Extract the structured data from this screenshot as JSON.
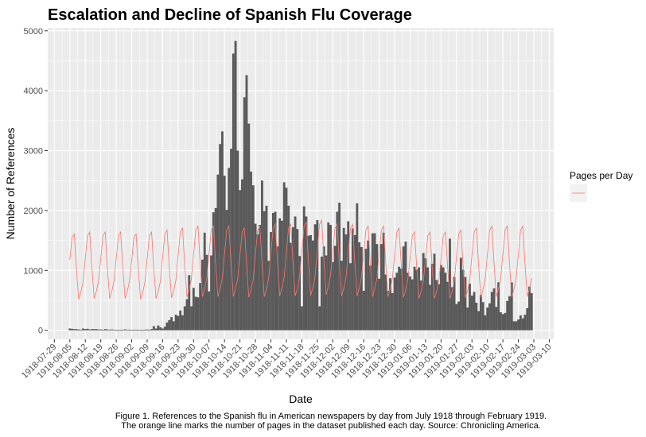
{
  "chart_data": {
    "type": "bar",
    "title": "Escalation and Decline of Spanish Flu Coverage",
    "xlabel": "Date",
    "ylabel": "Number of References",
    "ylim": [
      -150,
      5050
    ],
    "yticks": [
      0,
      1000,
      2000,
      3000,
      4000,
      5000
    ],
    "xlim": [
      "1918-07-26",
      "1919-03-12"
    ],
    "xticks": [
      "1918-07-29",
      "1918-08-05",
      "1918-08-12",
      "1918-08-19",
      "1918-08-26",
      "1918-09-02",
      "1918-09-09",
      "1918-09-16",
      "1918-09-23",
      "1918-09-30",
      "1918-10-07",
      "1918-10-14",
      "1918-10-21",
      "1918-10-28",
      "1918-11-04",
      "1918-11-11",
      "1918-11-18",
      "1918-11-25",
      "1918-12-02",
      "1918-12-09",
      "1918-12-16",
      "1918-12-23",
      "1918-12-30",
      "1919-01-06",
      "1919-01-13",
      "1919-01-20",
      "1919-01-27",
      "1919-02-03",
      "1919-02-10",
      "1919-02-17",
      "1919-02-24",
      "1919-03-03",
      "1919-03-10"
    ],
    "grid": true,
    "legend": {
      "title": "Pages per Day",
      "position": "right"
    },
    "series": [
      {
        "kind": "bar",
        "color": "#595959",
        "start_date": "1918-08-05",
        "values": [
          30,
          25,
          20,
          20,
          15,
          10,
          30,
          20,
          25,
          15,
          20,
          20,
          20,
          15,
          15,
          10,
          20,
          15,
          10,
          15,
          10,
          5,
          5,
          5,
          10,
          15,
          10,
          10,
          5,
          5,
          10,
          5,
          5,
          5,
          10,
          15,
          5,
          20,
          70,
          30,
          80,
          50,
          30,
          60,
          130,
          170,
          220,
          150,
          260,
          240,
          330,
          250,
          400,
          520,
          920,
          400,
          710,
          560,
          550,
          790,
          1180,
          1630,
          1260,
          650,
          1250,
          1970,
          2040,
          2600,
          3110,
          3320,
          2580,
          2010,
          2710,
          3030,
          4620,
          4830,
          3000,
          2340,
          2520,
          3890,
          4260,
          3450,
          2650,
          2420,
          1780,
          1600,
          1760,
          2500,
          1990,
          2080,
          1160,
          1640,
          1960,
          1980,
          1400,
          1870,
          1830,
          2470,
          2380,
          2080,
          1460,
          1720,
          1900,
          1690,
          1240,
          400,
          2070,
          1900,
          1580,
          1590,
          1500,
          1770,
          1840,
          400,
          1230,
          1400,
          1250,
          1800,
          1760,
          1140,
          1410,
          1980,
          2130,
          1160,
          1710,
          1600,
          1820,
          1120,
          1700,
          1590,
          2120,
          1470,
          1390,
          660,
          1360,
          1500,
          1080,
          1620,
          1620,
          1440,
          860,
          1440,
          1630,
          930,
          660,
          870,
          620,
          880,
          960,
          1060,
          1030,
          1400,
          1480,
          960,
          900,
          850,
          1060,
          1010,
          1050,
          830,
          1290,
          1200,
          1050,
          760,
          1110,
          1280,
          840,
          770,
          1090,
          1050,
          960,
          810,
          1530,
          720,
          890,
          440,
          480,
          1210,
          1010,
          890,
          380,
          780,
          580,
          640,
          460,
          320,
          590,
          470,
          250,
          380,
          450,
          640,
          700,
          390,
          800,
          300,
          270,
          290,
          490,
          570,
          800,
          150,
          150,
          180,
          250,
          200,
          260,
          370,
          730,
          620
        ]
      },
      {
        "kind": "line",
        "name": "Pages per Day",
        "color": "#F8766D",
        "start_date": "1918-08-05",
        "week_cycle": [
          1200,
          1580,
          1640,
          1050,
          530,
          650,
          820
        ],
        "weekly_factor": [
          0.98,
          1.0,
          1.0,
          1.0,
          0.98,
          1.0,
          1.02,
          1.04,
          1.06,
          1.06,
          1.06,
          1.04,
          1.06,
          1.08,
          1.08,
          1.1,
          1.12,
          1.08,
          1.08,
          1.06,
          1.06,
          1.04,
          1.0,
          1.0,
          1.0,
          1.02,
          1.04,
          1.06,
          1.06,
          1.06,
          1.04
        ]
      }
    ]
  },
  "caption": {
    "line1": "Figure 1. References to the Spanish flu in American newspapers by day from July 1918 through February 1919.",
    "line2": "The orange line marks the number of pages in the dataset published each day. Source: Chronicling America."
  }
}
